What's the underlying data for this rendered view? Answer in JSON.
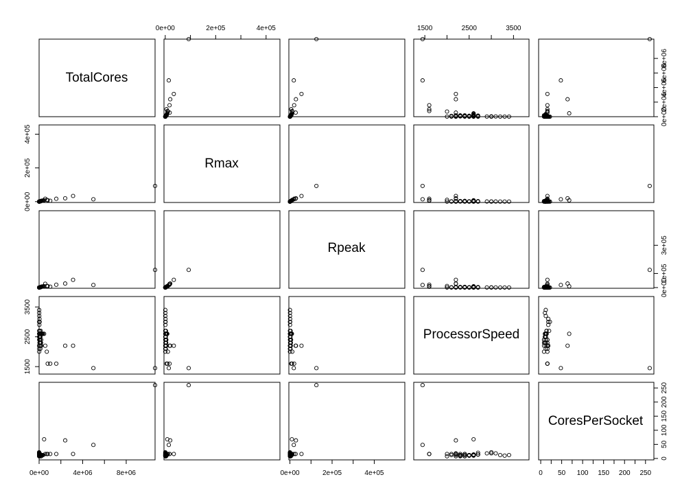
{
  "chart_data": {
    "type": "scatter",
    "kind": "scatterplot-matrix",
    "variables": [
      "TotalCores",
      "Rmax",
      "Rpeak",
      "ProcessorSpeed",
      "CoresPerSocket"
    ],
    "ranges": {
      "TotalCores": [
        0,
        10650000
      ],
      "Rmax": [
        -5000,
        455000
      ],
      "Rpeak": [
        -5000,
        545000
      ],
      "ProcessorSpeed": [
        1250,
        3850
      ],
      "CoresPerSocket": [
        -5,
        270
      ]
    },
    "axes": {
      "TotalCores": {
        "ticks": [
          0,
          4000000,
          8000000
        ],
        "labels": [
          "0e+00",
          "4e+06",
          "8e+06"
        ]
      },
      "Rmax": {
        "ticks": [
          0,
          200000,
          400000
        ],
        "labels": [
          "0e+00",
          "2e+05",
          "4e+05"
        ]
      },
      "Rpeak": {
        "ticks": [
          0,
          200000,
          400000
        ],
        "labels": [
          "0e+00",
          "2e+05",
          "4e+05"
        ]
      },
      "ProcessorSpeed": {
        "ticks": [
          1500,
          2500,
          3500
        ],
        "labels": [
          "1500",
          "2500",
          "3500"
        ]
      },
      "CoresPerSocket": {
        "ticks": [
          0,
          50,
          100,
          150,
          200,
          250
        ],
        "labels": [
          "0",
          "50",
          "100",
          "150",
          "200",
          "250"
        ]
      },
      "TotalCores_right": {
        "ticks": [
          0,
          2000000,
          4000000,
          6000000,
          8000000
        ],
        "labels": [
          "0e+00",
          "2e+06",
          "4e+06",
          "6e+06",
          "8e+06"
        ]
      },
      "Rpeak_right": {
        "ticks": [
          0,
          100000,
          300000
        ],
        "labels": [
          "0e+00",
          "1e+05",
          "3e+05"
        ]
      }
    },
    "outer_axes": {
      "top": [
        "Rmax",
        "ProcessorSpeed"
      ],
      "bottom": [
        "TotalCores",
        "Rpeak",
        "CoresPerSocket"
      ],
      "left": [
        "Rmax",
        "ProcessorSpeed"
      ],
      "right": [
        "TotalCores_right",
        "Rpeak_right",
        "CoresPerSocket"
      ]
    },
    "points": {
      "TotalCores": [
        10649600,
        3120000,
        705024,
        560640,
        1572864,
        786432,
        2397824,
        4981760,
        1024000,
        361760,
        301056,
        245760,
        220800,
        217080,
        192000,
        178608,
        462462,
        186368,
        152692,
        147456,
        135828,
        131072,
        124416,
        122400,
        115984,
        88992,
        82944,
        76032,
        72800,
        65536,
        62640,
        60000,
        57600,
        51840,
        50000,
        46080,
        42848,
        40000,
        38400,
        35000,
        32768,
        30000,
        28000,
        25000,
        22000,
        20000,
        18000,
        16000,
        14000,
        12000,
        10000,
        9000,
        8000,
        7500,
        6000,
        5000,
        4000,
        3500,
        3000,
        2500
      ],
      "Rmax": [
        93015,
        33863,
        10510,
        17590,
        17173,
        8587,
        19880,
        14015,
        5009,
        6771,
        5640,
        5537,
        5283,
        5008,
        4293,
        3577,
        8101,
        3057,
        2815,
        2566,
        2472,
        2260,
        2100,
        2000,
        1900,
        1800,
        1700,
        1600,
        1500,
        1400,
        1300,
        1250,
        1200,
        1150,
        1100,
        1050,
        1000,
        950,
        900,
        850,
        800,
        750,
        700,
        650,
        600,
        550,
        500,
        450,
        400,
        350,
        300,
        280,
        260,
        240,
        220,
        200,
        180,
        160,
        140,
        120
      ],
      "Rpeak": [
        125436,
        54902,
        11280,
        27113,
        20133,
        10066,
        28404,
        18309,
        6301,
        8518,
        7107,
        6451,
        6573,
        6285,
        5345,
        4340,
        9212,
        4022,
        3440,
        3185,
        2877,
        2734,
        2600,
        2500,
        2400,
        2300,
        2200,
        2100,
        2000,
        1900,
        1800,
        1700,
        1600,
        1500,
        1400,
        1300,
        1200,
        1100,
        1000,
        950,
        900,
        850,
        800,
        750,
        700,
        650,
        600,
        550,
        500,
        450,
        400,
        370,
        340,
        310,
        280,
        250,
        220,
        190,
        160,
        130
      ],
      "ProcessorSpeed": [
        1450,
        2200,
        2000,
        2200,
        1600,
        1600,
        2200,
        1450,
        1600,
        2600,
        2600,
        2600,
        2600,
        2600,
        2400,
        2300,
        2600,
        2200,
        2600,
        2700,
        2300,
        2600,
        2200,
        2500,
        2100,
        2400,
        2400,
        2600,
        2300,
        2600,
        2500,
        2600,
        2300,
        2700,
        2400,
        3000,
        2400,
        2200,
        2500,
        2300,
        3100,
        2600,
        2700,
        2400,
        2600,
        2500,
        2900,
        2600,
        2400,
        2200,
        3200,
        3300,
        2000,
        2600,
        2100,
        3400,
        2500,
        2700,
        2200,
        3000
      ],
      "CoresPerSocket": [
        260,
        16,
        16,
        16,
        16,
        16,
        64,
        48,
        16,
        12,
        12,
        12,
        12,
        12,
        12,
        12,
        68,
        8,
        12,
        14,
        8,
        12,
        12,
        12,
        12,
        12,
        12,
        14,
        16,
        12,
        12,
        10,
        12,
        14,
        16,
        18,
        8,
        16,
        12,
        10,
        18,
        12,
        14,
        16,
        12,
        10,
        18,
        12,
        8,
        16,
        12,
        10,
        8,
        14,
        16,
        12,
        10,
        20,
        18,
        22
      ]
    },
    "xlabel": "",
    "ylabel": "",
    "title": ""
  }
}
